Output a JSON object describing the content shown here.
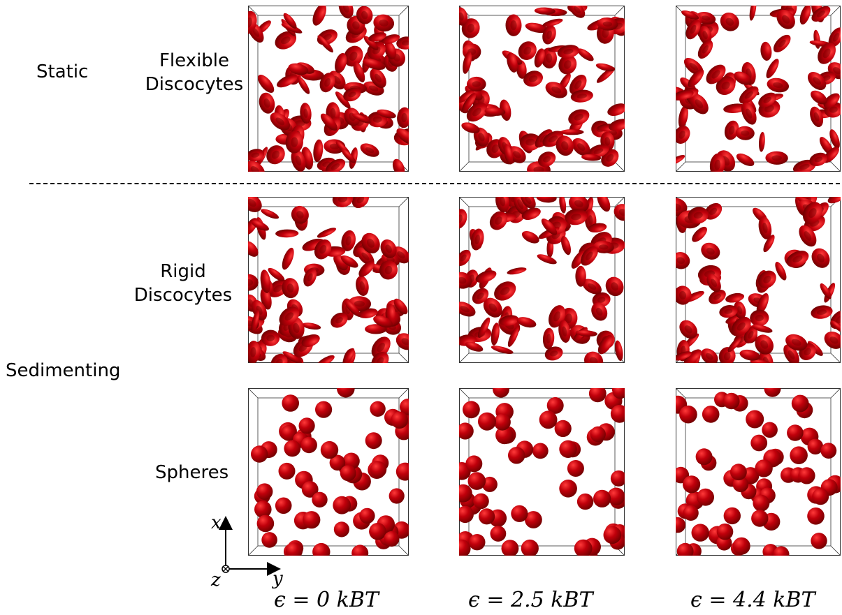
{
  "row_labels": {
    "static": "Static",
    "sedimenting": "Sedimenting"
  },
  "cell_types": {
    "flexible": [
      "Flexible",
      "Discocytes"
    ],
    "rigid": [
      "Rigid",
      "Discocytes"
    ],
    "spheres": "Spheres"
  },
  "columns": [
    {
      "label": "ϵ = 0 kBT",
      "epsilon": 0
    },
    {
      "label": "ϵ = 2.5 kBT",
      "epsilon": 2.5
    },
    {
      "label": "ϵ = 4.4 kBT",
      "epsilon": 4.4
    }
  ],
  "axes": {
    "x": "x",
    "y": "y",
    "z": "z"
  },
  "colors": {
    "cell": "#c0000b",
    "cell_dark": "#6e0000",
    "cell_light": "#ff3a3a",
    "box": "#333333"
  }
}
